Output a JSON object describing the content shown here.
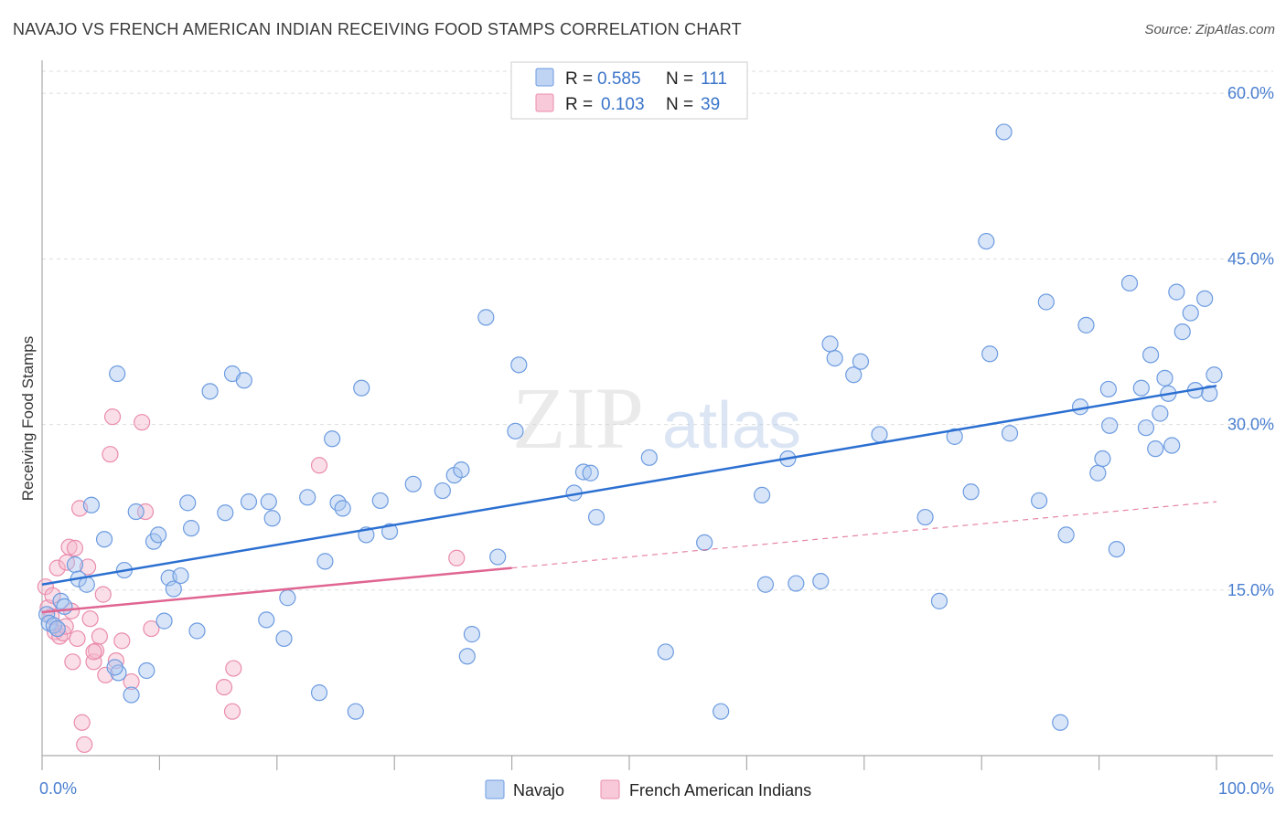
{
  "title": "NAVAJO VS FRENCH AMERICAN INDIAN RECEIVING FOOD STAMPS CORRELATION CHART",
  "source": "Source: ZipAtlas.com",
  "watermark": {
    "zip": "ZIP",
    "atlas": "atlas"
  },
  "colors": {
    "navajo_fill": "#a9c6ef",
    "navajo_stroke": "#6c9be0",
    "navajo_line": "#2b6fd1",
    "french_fill": "#f5b8cc",
    "french_stroke": "#ea8cad",
    "french_line": "#e06592",
    "grid": "#dddddd",
    "axis_label": "#4a7fd0"
  },
  "legend": {
    "rows": [
      {
        "r_label": "R = ",
        "r_value": "0.585",
        "n_label": "N = ",
        "n_value": "111"
      },
      {
        "r_label": "R = ",
        "r_value": "0.103",
        "n_label": "N = ",
        "n_value": "39"
      }
    ]
  },
  "chart_data": {
    "type": "scatter",
    "title": "NAVAJO VS FRENCH AMERICAN INDIAN RECEIVING FOOD STAMPS CORRELATION CHART",
    "xlabel": "",
    "ylabel": "Receiving Food Stamps",
    "xlim": [
      0,
      100
    ],
    "ylim": [
      0,
      62
    ],
    "x_tick_labels": [
      "0.0%",
      "100.0%"
    ],
    "y_ticks": [
      15,
      30,
      45,
      60
    ],
    "y_tick_labels": [
      "15.0%",
      "30.0%",
      "45.0%",
      "60.0%"
    ],
    "grid": true,
    "legend_position": "top-center",
    "series": [
      {
        "name": "Navajo",
        "r": 0.585,
        "n": 111,
        "trend": {
          "x": [
            0,
            100
          ],
          "y": [
            15.5,
            33.5
          ],
          "style": "solid"
        },
        "points": [
          [
            0.4,
            12.8
          ],
          [
            0.6,
            12.0
          ],
          [
            1.0,
            11.8
          ],
          [
            1.3,
            11.5
          ],
          [
            1.6,
            14.0
          ],
          [
            1.9,
            13.5
          ],
          [
            2.8,
            17.3
          ],
          [
            3.1,
            16.0
          ],
          [
            3.8,
            15.5
          ],
          [
            4.2,
            22.7
          ],
          [
            5.3,
            19.6
          ],
          [
            6.5,
            7.5
          ],
          [
            6.2,
            8.0
          ],
          [
            6.4,
            34.6
          ],
          [
            7.0,
            16.8
          ],
          [
            7.6,
            5.5
          ],
          [
            8.0,
            22.1
          ],
          [
            8.9,
            7.7
          ],
          [
            9.5,
            19.4
          ],
          [
            9.9,
            20.0
          ],
          [
            10.4,
            12.2
          ],
          [
            10.8,
            16.1
          ],
          [
            11.2,
            15.1
          ],
          [
            11.8,
            16.3
          ],
          [
            12.4,
            22.9
          ],
          [
            12.7,
            20.6
          ],
          [
            13.2,
            11.3
          ],
          [
            14.3,
            33.0
          ],
          [
            15.6,
            22.0
          ],
          [
            16.2,
            34.6
          ],
          [
            17.2,
            34.0
          ],
          [
            17.6,
            23.0
          ],
          [
            19.1,
            12.3
          ],
          [
            19.3,
            23.0
          ],
          [
            19.6,
            21.5
          ],
          [
            20.6,
            10.6
          ],
          [
            20.9,
            14.3
          ],
          [
            22.6,
            23.4
          ],
          [
            23.6,
            5.7
          ],
          [
            24.1,
            17.6
          ],
          [
            24.7,
            28.7
          ],
          [
            25.2,
            22.9
          ],
          [
            25.6,
            22.4
          ],
          [
            26.7,
            4.0
          ],
          [
            27.2,
            33.3
          ],
          [
            27.6,
            20.0
          ],
          [
            28.8,
            23.1
          ],
          [
            29.6,
            20.3
          ],
          [
            31.6,
            24.6
          ],
          [
            34.1,
            24.0
          ],
          [
            35.1,
            25.4
          ],
          [
            35.7,
            25.9
          ],
          [
            36.2,
            9.0
          ],
          [
            36.6,
            11.0
          ],
          [
            37.8,
            39.7
          ],
          [
            38.8,
            18.0
          ],
          [
            40.3,
            29.4
          ],
          [
            40.6,
            35.4
          ],
          [
            45.3,
            23.8
          ],
          [
            46.1,
            25.7
          ],
          [
            46.7,
            25.6
          ],
          [
            47.2,
            21.6
          ],
          [
            51.7,
            27.0
          ],
          [
            53.1,
            9.4
          ],
          [
            56.4,
            19.3
          ],
          [
            57.8,
            4.0
          ],
          [
            61.3,
            23.6
          ],
          [
            61.6,
            15.5
          ],
          [
            63.5,
            26.9
          ],
          [
            64.2,
            15.6
          ],
          [
            66.3,
            15.8
          ],
          [
            67.1,
            37.3
          ],
          [
            67.5,
            36.0
          ],
          [
            69.1,
            34.5
          ],
          [
            69.7,
            35.7
          ],
          [
            71.3,
            29.1
          ],
          [
            75.2,
            21.6
          ],
          [
            76.4,
            14.0
          ],
          [
            77.7,
            28.9
          ],
          [
            79.1,
            23.9
          ],
          [
            80.7,
            36.4
          ],
          [
            80.4,
            46.6
          ],
          [
            81.9,
            56.5
          ],
          [
            82.4,
            29.2
          ],
          [
            84.9,
            23.1
          ],
          [
            85.5,
            41.1
          ],
          [
            86.7,
            3.0
          ],
          [
            87.2,
            20.0
          ],
          [
            88.4,
            31.6
          ],
          [
            88.9,
            39.0
          ],
          [
            89.9,
            25.6
          ],
          [
            90.3,
            26.9
          ],
          [
            90.8,
            33.2
          ],
          [
            90.9,
            29.9
          ],
          [
            91.5,
            18.7
          ],
          [
            92.6,
            42.8
          ],
          [
            93.6,
            33.3
          ],
          [
            94.0,
            29.7
          ],
          [
            94.4,
            36.3
          ],
          [
            94.8,
            27.8
          ],
          [
            95.2,
            31.0
          ],
          [
            95.6,
            34.2
          ],
          [
            95.9,
            32.8
          ],
          [
            96.6,
            42.0
          ],
          [
            97.1,
            38.4
          ],
          [
            97.8,
            40.1
          ],
          [
            98.2,
            33.1
          ],
          [
            99.0,
            41.4
          ],
          [
            99.4,
            32.8
          ],
          [
            99.8,
            34.5
          ],
          [
            96.2,
            28.1
          ]
        ]
      },
      {
        "name": "French American Indians",
        "r": 0.103,
        "n": 39,
        "trend": {
          "x": [
            0,
            100
          ],
          "y": [
            13.0,
            23.0
          ],
          "solid_until": 40,
          "style": "solid-then-dashed"
        },
        "points": [
          [
            0.3,
            15.3
          ],
          [
            0.5,
            13.4
          ],
          [
            0.8,
            12.6
          ],
          [
            0.9,
            14.5
          ],
          [
            1.1,
            11.2
          ],
          [
            1.3,
            17.0
          ],
          [
            1.5,
            10.8
          ],
          [
            1.8,
            11.1
          ],
          [
            2.0,
            11.7
          ],
          [
            2.1,
            17.5
          ],
          [
            2.3,
            18.9
          ],
          [
            2.5,
            13.1
          ],
          [
            2.6,
            8.5
          ],
          [
            2.8,
            18.8
          ],
          [
            3.0,
            10.6
          ],
          [
            3.2,
            22.4
          ],
          [
            3.4,
            3.0
          ],
          [
            3.6,
            1.0
          ],
          [
            3.9,
            17.1
          ],
          [
            4.1,
            12.4
          ],
          [
            4.4,
            8.5
          ],
          [
            4.6,
            9.5
          ],
          [
            4.9,
            10.8
          ],
          [
            5.2,
            14.6
          ],
          [
            5.4,
            7.3
          ],
          [
            5.8,
            27.3
          ],
          [
            6.0,
            30.7
          ],
          [
            6.3,
            8.6
          ],
          [
            6.8,
            10.4
          ],
          [
            7.6,
            6.7
          ],
          [
            8.5,
            30.2
          ],
          [
            8.8,
            22.1
          ],
          [
            9.3,
            11.5
          ],
          [
            15.5,
            6.2
          ],
          [
            16.2,
            4.0
          ],
          [
            16.3,
            7.9
          ],
          [
            23.6,
            26.3
          ],
          [
            35.3,
            17.9
          ],
          [
            4.4,
            9.4
          ]
        ]
      }
    ]
  },
  "bottom_legend": [
    {
      "label": "Navajo"
    },
    {
      "label": "French American Indians"
    }
  ]
}
